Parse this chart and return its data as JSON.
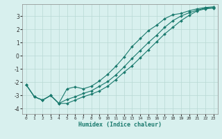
{
  "xlabel": "Humidex (Indice chaleur)",
  "x": [
    0,
    1,
    2,
    3,
    4,
    5,
    6,
    7,
    8,
    9,
    10,
    11,
    12,
    13,
    14,
    15,
    16,
    17,
    18,
    19,
    20,
    21,
    22,
    23
  ],
  "line_upper": [
    -2.2,
    -3.1,
    -3.35,
    -3.0,
    -3.6,
    -2.5,
    -2.35,
    -2.5,
    -2.3,
    -1.9,
    -1.4,
    -0.8,
    -0.1,
    0.7,
    1.3,
    1.9,
    2.3,
    2.8,
    3.1,
    3.2,
    3.4,
    3.55,
    3.65,
    3.7
  ],
  "line_mid": [
    -2.2,
    -3.1,
    -3.35,
    -3.0,
    -3.6,
    -3.3,
    -3.1,
    -2.85,
    -2.65,
    -2.3,
    -1.95,
    -1.45,
    -0.85,
    -0.2,
    0.4,
    1.0,
    1.55,
    2.15,
    2.65,
    3.0,
    3.25,
    3.45,
    3.6,
    3.65
  ],
  "line_lower": [
    -2.2,
    -3.1,
    -3.35,
    -3.0,
    -3.6,
    -3.6,
    -3.35,
    -3.1,
    -2.9,
    -2.65,
    -2.3,
    -1.8,
    -1.25,
    -0.75,
    -0.15,
    0.45,
    1.05,
    1.65,
    2.15,
    2.65,
    3.05,
    3.4,
    3.55,
    3.6
  ],
  "line_color": "#1a7a6e",
  "bg_color": "#d8f0ee",
  "grid_color": "#b8d8d4",
  "ylim": [
    -4.4,
    3.9
  ],
  "xlim": [
    -0.5,
    23.5
  ],
  "yticks": [
    -4,
    -3,
    -2,
    -1,
    0,
    1,
    2,
    3
  ],
  "xticks": [
    0,
    1,
    2,
    3,
    4,
    5,
    6,
    7,
    8,
    9,
    10,
    11,
    12,
    13,
    14,
    15,
    16,
    17,
    18,
    19,
    20,
    21,
    22,
    23
  ],
  "marker": "D",
  "markersize": 2.0,
  "linewidth": 0.8
}
